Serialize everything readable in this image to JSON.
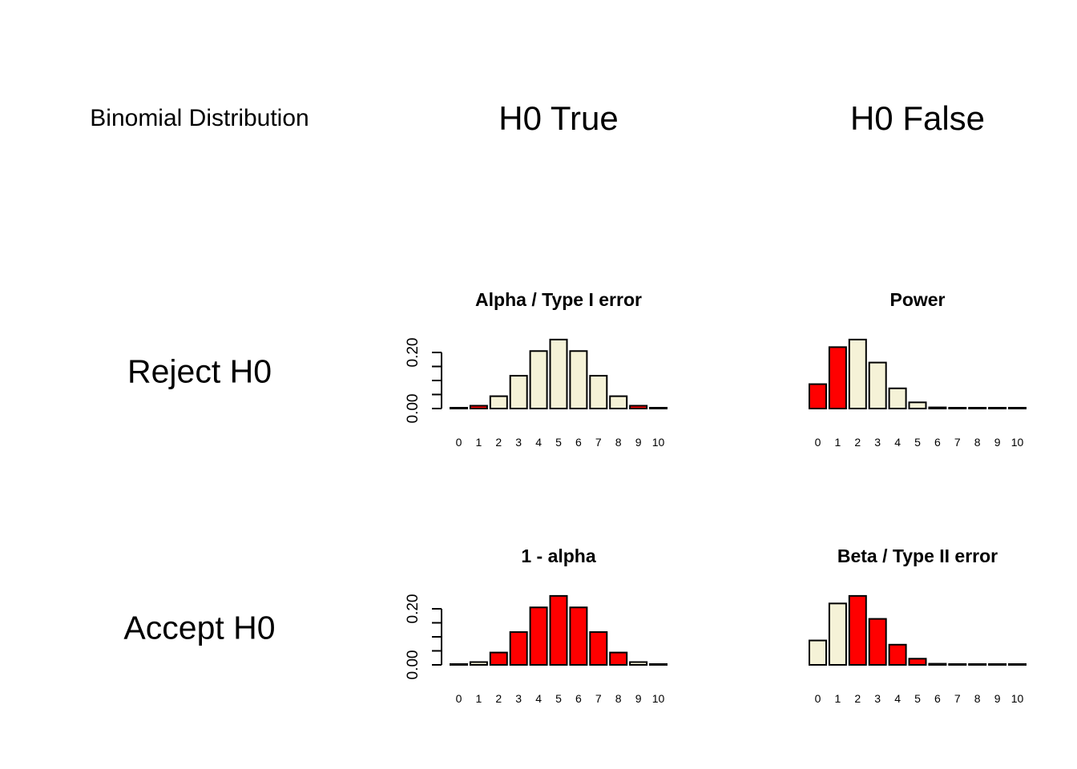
{
  "corner_label": "Binomial Distribution",
  "columns": [
    "H0 True",
    "H0 False"
  ],
  "rows": [
    "Reject H0",
    "Accept H0"
  ],
  "colors": {
    "highlight": "#FF0000",
    "base": "#F5F2D7",
    "outline": "#000000"
  },
  "chart_data": [
    {
      "type": "bar",
      "title": "Alpha / Type I error",
      "categories": [
        "0",
        "1",
        "2",
        "3",
        "4",
        "5",
        "6",
        "7",
        "8",
        "9",
        "10"
      ],
      "values": [
        0.001,
        0.01,
        0.044,
        0.117,
        0.205,
        0.246,
        0.205,
        0.117,
        0.044,
        0.01,
        0.001
      ],
      "highlight": [
        1,
        1,
        0,
        0,
        0,
        0,
        0,
        0,
        0,
        1,
        1
      ],
      "yticks": [
        "0.00",
        "0.20"
      ],
      "ylim": [
        0,
        0.25
      ],
      "show_yaxis": true
    },
    {
      "type": "bar",
      "title": "Power",
      "categories": [
        "0",
        "1",
        "2",
        "3",
        "4",
        "5",
        "6",
        "7",
        "8",
        "9",
        "10"
      ],
      "values": [
        0.087,
        0.219,
        0.246,
        0.164,
        0.072,
        0.022,
        0.004,
        0.001,
        0.0,
        0.0,
        0.0
      ],
      "highlight": [
        1,
        1,
        0,
        0,
        0,
        0,
        0,
        0,
        0,
        1,
        1
      ],
      "yticks": [],
      "ylim": [
        0,
        0.25
      ],
      "show_yaxis": false
    },
    {
      "type": "bar",
      "title": "1 - alpha",
      "categories": [
        "0",
        "1",
        "2",
        "3",
        "4",
        "5",
        "6",
        "7",
        "8",
        "9",
        "10"
      ],
      "values": [
        0.001,
        0.01,
        0.044,
        0.117,
        0.205,
        0.246,
        0.205,
        0.117,
        0.044,
        0.01,
        0.001
      ],
      "highlight": [
        0,
        0,
        1,
        1,
        1,
        1,
        1,
        1,
        1,
        0,
        0
      ],
      "yticks": [
        "0.00",
        "0.20"
      ],
      "ylim": [
        0,
        0.25
      ],
      "show_yaxis": true
    },
    {
      "type": "bar",
      "title": "Beta / Type II error",
      "categories": [
        "0",
        "1",
        "2",
        "3",
        "4",
        "5",
        "6",
        "7",
        "8",
        "9",
        "10"
      ],
      "values": [
        0.087,
        0.219,
        0.246,
        0.164,
        0.072,
        0.022,
        0.004,
        0.001,
        0.0,
        0.0,
        0.0
      ],
      "highlight": [
        0,
        0,
        1,
        1,
        1,
        1,
        1,
        1,
        1,
        0,
        0
      ],
      "yticks": [],
      "ylim": [
        0,
        0.25
      ],
      "show_yaxis": false
    }
  ]
}
